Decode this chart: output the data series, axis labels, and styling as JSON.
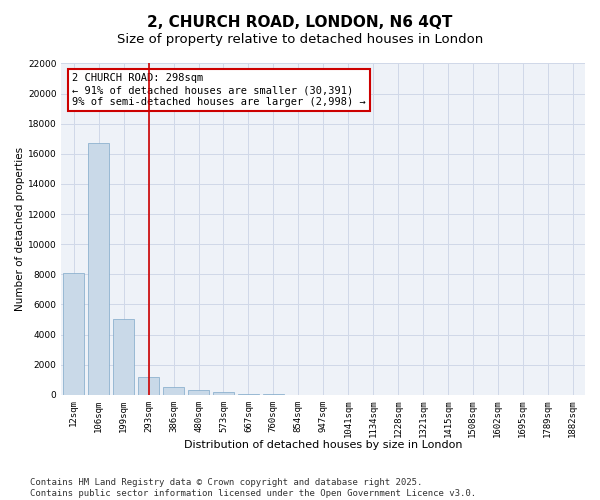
{
  "title": "2, CHURCH ROAD, LONDON, N6 4QT",
  "subtitle": "Size of property relative to detached houses in London",
  "xlabel": "Distribution of detached houses by size in London",
  "ylabel": "Number of detached properties",
  "categories": [
    "12sqm",
    "106sqm",
    "199sqm",
    "293sqm",
    "386sqm",
    "480sqm",
    "573sqm",
    "667sqm",
    "760sqm",
    "854sqm",
    "947sqm",
    "1041sqm",
    "1134sqm",
    "1228sqm",
    "1321sqm",
    "1415sqm",
    "1508sqm",
    "1602sqm",
    "1695sqm",
    "1789sqm",
    "1882sqm"
  ],
  "values": [
    8100,
    16700,
    5000,
    1200,
    500,
    300,
    150,
    80,
    30,
    0,
    0,
    0,
    0,
    0,
    0,
    0,
    0,
    0,
    0,
    0,
    0
  ],
  "bar_color": "#c9d9e8",
  "bar_edge_color": "#7fa8c9",
  "vline_x_index": 3,
  "vline_color": "#cc0000",
  "annotation_text": "2 CHURCH ROAD: 298sqm\n← 91% of detached houses are smaller (30,391)\n9% of semi-detached houses are larger (2,998) →",
  "annotation_box_color": "#cc0000",
  "ylim": [
    0,
    22000
  ],
  "yticks": [
    0,
    2000,
    4000,
    6000,
    8000,
    10000,
    12000,
    14000,
    16000,
    18000,
    20000,
    22000
  ],
  "grid_color": "#d0d8e8",
  "background_color": "#eef2f8",
  "footer_text": "Contains HM Land Registry data © Crown copyright and database right 2025.\nContains public sector information licensed under the Open Government Licence v3.0.",
  "title_fontsize": 11,
  "subtitle_fontsize": 9.5,
  "xlabel_fontsize": 8,
  "ylabel_fontsize": 7.5,
  "tick_fontsize": 6.5,
  "annotation_fontsize": 7.5,
  "footer_fontsize": 6.5
}
